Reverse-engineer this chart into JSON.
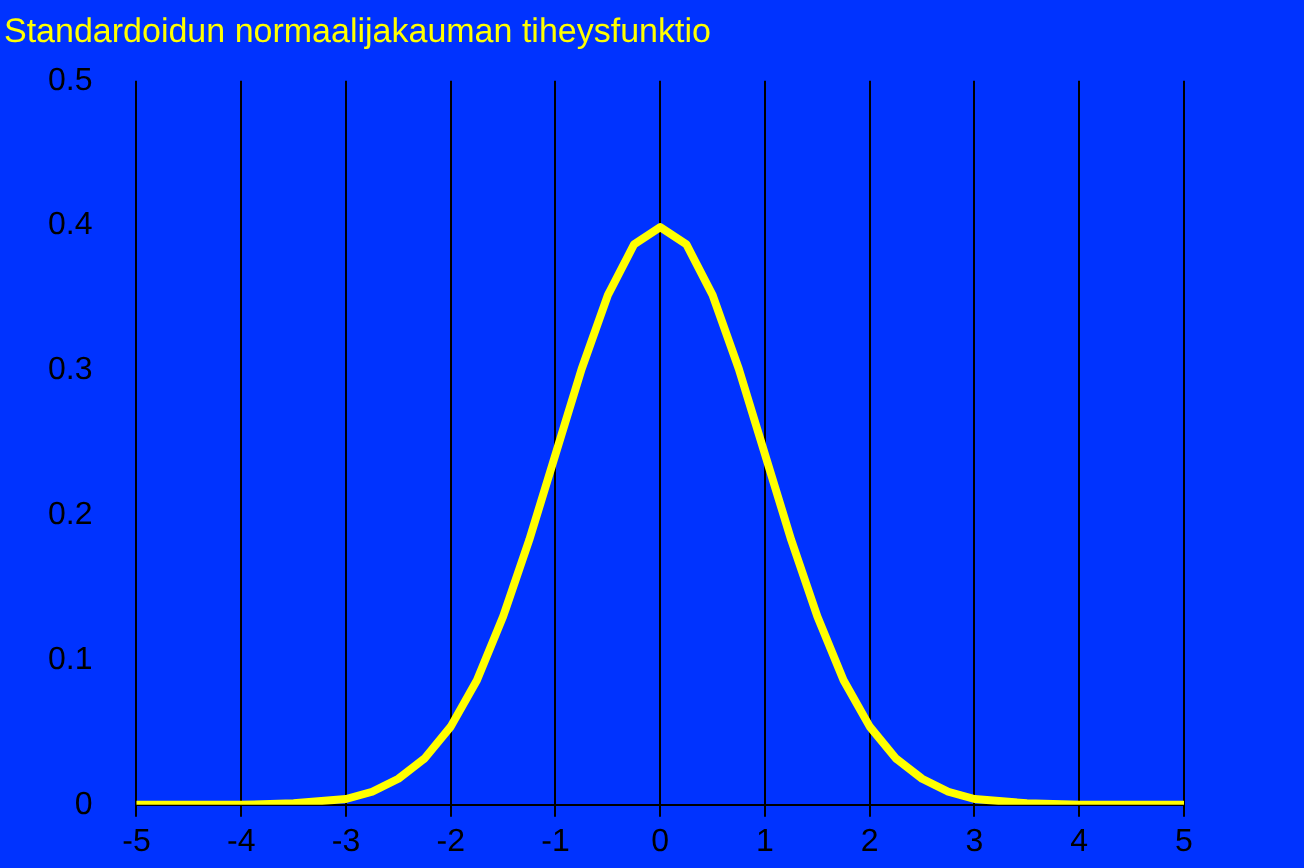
{
  "chart_data": {
    "type": "line",
    "title": "Standardoidun normaalijakauman tiheysfunktio",
    "x": [
      -5,
      -4.5,
      -4,
      -3.5,
      -3,
      -2.75,
      -2.5,
      -2.25,
      -2,
      -1.75,
      -1.5,
      -1.25,
      -1,
      -0.75,
      -0.5,
      -0.25,
      0,
      0.25,
      0.5,
      0.75,
      1,
      1.25,
      1.5,
      1.75,
      2,
      2.25,
      2.5,
      2.75,
      3,
      3.5,
      4,
      4.5,
      5
    ],
    "series": [
      {
        "color": "#ffff00",
        "values": [
          0,
          0,
          0,
          0.001,
          0.004,
          0.009,
          0.018,
          0.032,
          0.054,
          0.086,
          0.13,
          0.183,
          0.242,
          0.301,
          0.352,
          0.387,
          0.399,
          0.387,
          0.352,
          0.301,
          0.242,
          0.183,
          0.13,
          0.086,
          0.054,
          0.032,
          0.018,
          0.009,
          0.004,
          0.001,
          0,
          0,
          0
        ]
      }
    ],
    "xlim": [
      -5,
      5
    ],
    "xticks": [
      -5,
      -4,
      -3,
      -2,
      -1,
      0,
      1,
      2,
      3,
      4,
      5
    ],
    "ylim": [
      0,
      0.5
    ],
    "yticks": [
      0,
      0.1,
      0.2,
      0.3,
      0.4,
      0.5
    ],
    "grid": "x",
    "legend": false,
    "marker": "none",
    "line_style": "solid"
  }
}
